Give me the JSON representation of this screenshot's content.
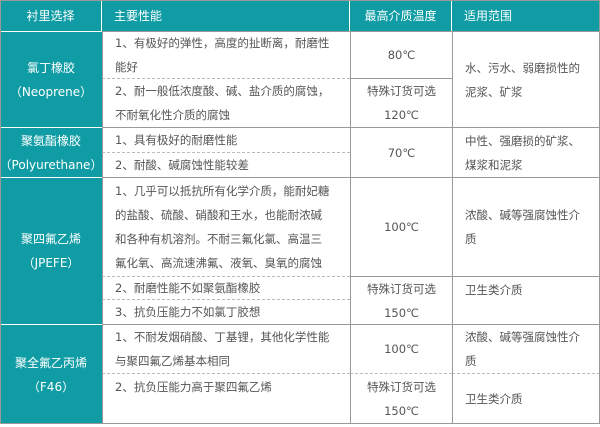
{
  "header": {
    "lining": "衬里选择",
    "properties": "主要性能",
    "max_temp": "最高介质温度",
    "applications": "适用范围"
  },
  "rows": [
    {
      "lining": [
        "氯丁橡胶",
        "（Neoprene）"
      ],
      "props": [
        [
          "1、有极好的弹性，高度的扯断离，耐磨性",
          "能好"
        ],
        [
          "2、耐一般低浓度酸、碱、盐介质的腐蚀，",
          "不耐氧化性介质的腐蚀"
        ]
      ],
      "temps": [
        [
          "80℃"
        ],
        [
          "特殊订货可选",
          "120℃"
        ]
      ],
      "apps": [
        [
          "水、污水、弱磨损性的",
          "泥浆、矿浆"
        ]
      ]
    },
    {
      "lining": [
        "聚氨酯橡胶",
        "（Polyurethane）"
      ],
      "props": [
        [
          "1、具有极好的耐磨性能"
        ],
        [
          "2、耐酸、碱腐蚀性能较差"
        ]
      ],
      "temps": [
        [
          "70℃"
        ]
      ],
      "apps": [
        [
          "中性、强磨损的矿浆、",
          "煤浆和泥浆"
        ]
      ]
    },
    {
      "lining": [
        "聚四氟乙烯",
        "（JPEFE）"
      ],
      "props": [
        [
          "1、几乎可以抵抗所有化学介质，能耐妃糖",
          "的盐酸、硫酸、硝酸和王水，也能耐浓碱",
          "和各种有机溶剂。不耐三氟化氯、高温三",
          "氟化氧、高流速沸氟、液氧、臭氧的腐蚀"
        ],
        [
          "2、耐磨性能不如聚氨酯橡胶"
        ],
        [
          "3、抗负压能力不如氯丁胶想"
        ]
      ],
      "temps": [
        [
          "100℃"
        ],
        [
          "特殊订货可选",
          "150℃"
        ]
      ],
      "apps": [
        [
          "浓酸、碱等强腐蚀性介",
          "质"
        ],
        [
          "卫生类介质"
        ]
      ]
    },
    {
      "lining": [
        "聚全氟乙丙烯",
        "（F46）"
      ],
      "props": [
        [
          "1、不耐发烟硝酸、丁基锂，其他化学性能",
          "与聚四氟乙烯基本相同"
        ],
        [
          "2、抗负压能力高于聚四氟乙烯"
        ]
      ],
      "temps": [
        [
          "100℃"
        ],
        [
          "特殊订货可选",
          "150℃"
        ]
      ],
      "apps": [
        [
          "浓酸、碱等强腐蚀性介",
          "质"
        ],
        [
          "卫生类介质"
        ]
      ]
    }
  ]
}
